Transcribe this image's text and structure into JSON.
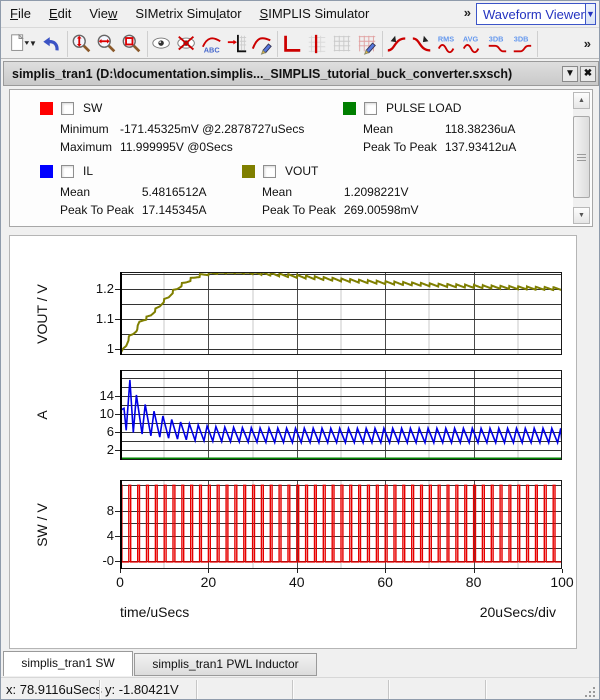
{
  "menu_bar": {
    "items": [
      {
        "label": "File",
        "underline_index": 0
      },
      {
        "label": "Edit",
        "underline_index": 0
      },
      {
        "label": "View",
        "underline_index": 3
      },
      {
        "label": "SIMetrix Simulator",
        "underline_index": 13
      },
      {
        "label": "SIMPLIS Simulator",
        "underline_index": 0
      }
    ],
    "overflow": "»",
    "viewer_combo": {
      "label": "Waveform Viewer"
    }
  },
  "toolbar": {
    "overflow": "»",
    "groups": [
      [
        "new-waveform-document",
        "undo"
      ],
      [
        "zoom-y-fit",
        "zoom-x-fit",
        "zoom-rectangle"
      ],
      [
        "show-curve",
        "hide-curve",
        "label-curve",
        "move-curve-to-axis",
        "curve-options"
      ],
      [
        "add-axis",
        "add-cursor",
        "toggle-grid",
        "grid-options"
      ],
      [
        "measure-rise-time",
        "measure-fall-time",
        "measure-rms",
        "measure-average",
        "measure-3db-low",
        "measure-3db-high"
      ]
    ]
  },
  "document": {
    "title": "simplis_tran1 (D:\\documentation.simplis..._SIMPLIS_tutorial_buck_converter.sxsch)"
  },
  "legend": {
    "rows": [
      [
        {
          "name": "SW",
          "color": "#ff0000",
          "checked": false,
          "stats": [
            [
              "Minimum",
              "-171.45325mV @2.2878727uSecs"
            ],
            [
              "Maximum",
              "11.999995V @0Secs"
            ]
          ]
        },
        {
          "name": "PULSE LOAD",
          "color": "#007f00",
          "checked": false,
          "stats": [
            [
              "Mean",
              "118.38236uA"
            ],
            [
              "Peak To Peak",
              "137.93412uA"
            ]
          ]
        }
      ],
      [
        {
          "name": "IL",
          "color": "#0000ff",
          "checked": false,
          "stats": [
            [
              "Mean",
              "5.4816512A"
            ],
            [
              "Peak To Peak",
              "17.145345A"
            ]
          ]
        },
        {
          "name": "VOUT",
          "color": "#7f7f00",
          "checked": false,
          "stats": [
            [
              "Mean",
              "1.2098221V"
            ],
            [
              "Peak To Peak",
              "269.00598mV"
            ]
          ]
        }
      ]
    ]
  },
  "chart_data": {
    "type": "line",
    "xlabel": "time/uSecs",
    "x_div_label": "20uSecs/div",
    "x_range": [
      0,
      100
    ],
    "x_major_ticks": [
      0,
      20,
      40,
      60,
      80,
      100
    ],
    "x_minor_step": 10,
    "grid": true,
    "plots": [
      {
        "ylabel": "VOUT / V",
        "ylim": [
          0.98,
          1.2567
        ],
        "grid_step": 0.05,
        "grid_start": 1.0,
        "yticks": [
          {
            "v": 1.2,
            "t": "1.2"
          },
          {
            "v": 1.1,
            "t": "1.1"
          },
          {
            "v": 1.0,
            "t": "1"
          }
        ],
        "series": [
          {
            "name": "VOUT",
            "color": "#7f7f00",
            "width": 2,
            "type": "envelope_ripple",
            "period": 2,
            "ripple_half": 0.005,
            "envelope": [
              [
                0,
                0.978
              ],
              [
                0.7,
                1.0
              ],
              [
                1.4,
                1.012
              ],
              [
                2.1,
                1.04
              ],
              [
                3,
                1.05
              ],
              [
                3.7,
                1.062
              ],
              [
                4.4,
                1.088
              ],
              [
                5.2,
                1.096
              ],
              [
                6,
                1.103
              ],
              [
                7,
                1.112
              ],
              [
                8,
                1.13
              ],
              [
                9,
                1.142
              ],
              [
                10,
                1.162
              ],
              [
                11,
                1.172
              ],
              [
                12,
                1.192
              ],
              [
                13,
                1.2
              ],
              [
                14,
                1.215
              ],
              [
                15,
                1.222
              ],
              [
                16,
                1.232
              ],
              [
                17,
                1.238
              ],
              [
                18,
                1.245
              ],
              [
                19,
                1.248
              ],
              [
                20,
                1.251
              ],
              [
                22,
                1.2555
              ],
              [
                25,
                1.2575
              ],
              [
                28,
                1.2565
              ],
              [
                32,
                1.2525
              ],
              [
                36,
                1.2475
              ],
              [
                40,
                1.2425
              ],
              [
                45,
                1.2365
              ],
              [
                50,
                1.2305
              ],
              [
                55,
                1.2255
              ],
              [
                60,
                1.2215
              ],
              [
                65,
                1.218
              ],
              [
                70,
                1.2145
              ],
              [
                75,
                1.2115
              ],
              [
                80,
                1.209
              ],
              [
                85,
                1.2065
              ],
              [
                90,
                1.2045
              ],
              [
                95,
                1.2025
              ],
              [
                100,
                1.201
              ]
            ]
          }
        ]
      },
      {
        "ylabel": "A",
        "ylim": [
          -0.2,
          19.8
        ],
        "grid_step": 2,
        "grid_start": 0,
        "yticks": [
          {
            "v": 14,
            "t": "14"
          },
          {
            "v": 10,
            "t": "10"
          },
          {
            "v": 6,
            "t": "6"
          },
          {
            "v": 2,
            "t": "2"
          }
        ],
        "series": [
          {
            "name": "IL",
            "color": "#0000e6",
            "width": 1.6,
            "type": "decay_sawtooth",
            "period": 2,
            "rise_time": 0.7,
            "cycle_start": 3.0,
            "head": [
              [
                0,
                0.2
              ],
              [
                0.2,
                10.9
              ],
              [
                0.9,
                11.3
              ],
              [
                1.4,
                6.4
              ],
              [
                2.25,
                17.6
              ],
              [
                3.0,
                5.9
              ]
            ],
            "trough": {
              "base": 3.65,
              "amp": 2.4,
              "tau": 9.0
            },
            "peak": {
              "base": 6.85,
              "amp": 8.3,
              "tau": 6.0
            }
          },
          {
            "name": "PULSE LOAD",
            "color": "#007f00",
            "width": 1.8,
            "type": "flat",
            "value": 0.15
          }
        ]
      },
      {
        "ylabel": "SW / V",
        "ylim": [
          -1.3,
          12.85
        ],
        "grid_step": 2,
        "grid_start": 0,
        "yticks": [
          {
            "v": 8,
            "t": "8"
          },
          {
            "v": 4,
            "t": "4"
          },
          {
            "v": 0,
            "t": "-0"
          }
        ],
        "series": [
          {
            "name": "SW",
            "color": "#e60000",
            "width": 1.4,
            "type": "pulse",
            "period": 2,
            "duty": 0.21,
            "high": 12,
            "low": -0.17
          }
        ]
      }
    ]
  },
  "tabs": [
    {
      "label": "simplis_tran1 SW",
      "active": true
    },
    {
      "label": "simplis_tran1 PWL Inductor",
      "active": false
    }
  ],
  "status_bar": {
    "x": "x: 78.9116uSecs",
    "y": "y: -1.80421V"
  }
}
